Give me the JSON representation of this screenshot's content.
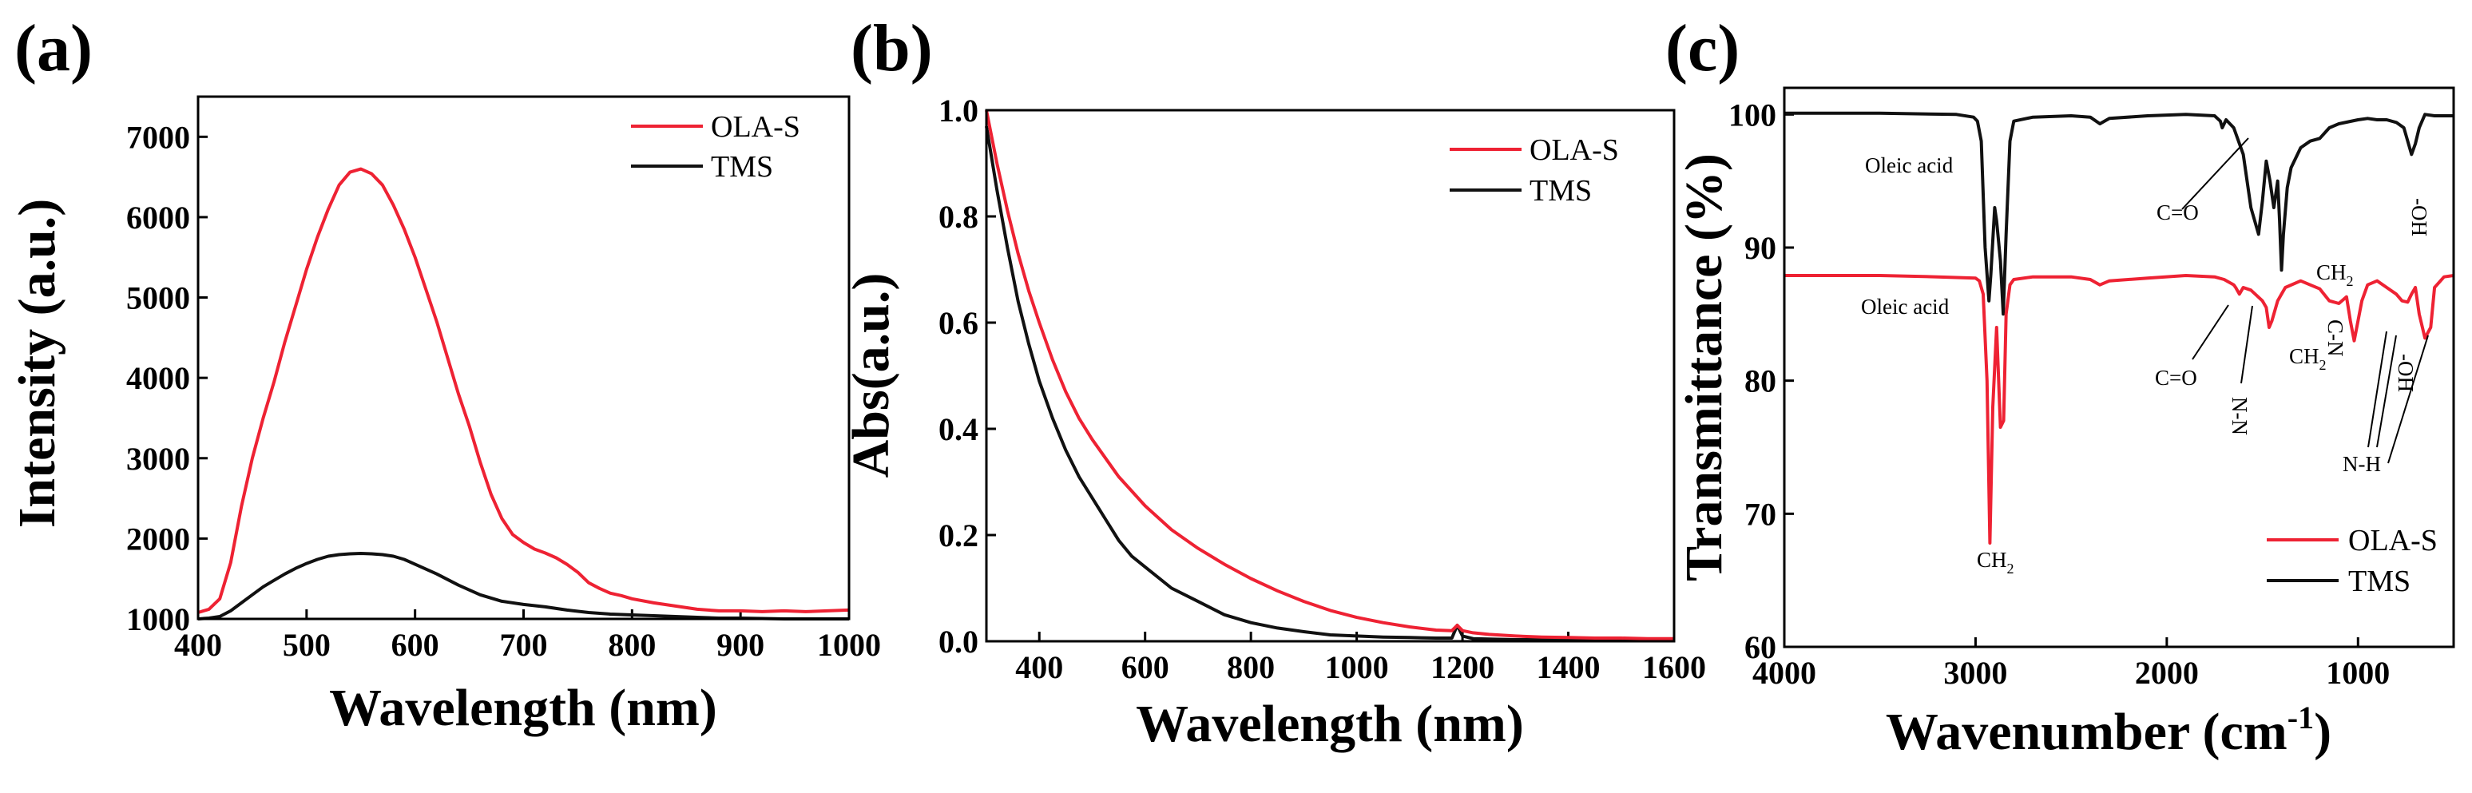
{
  "chart_data": [
    {
      "panel": "(a)",
      "type": "line",
      "title": "",
      "xlabel": "Wavelength (nm)",
      "ylabel": "Intensity (a.u.)",
      "xlim": [
        400,
        1000
      ],
      "ylim": [
        1000,
        7500
      ],
      "xticks": [
        400,
        500,
        600,
        700,
        800,
        900,
        1000
      ],
      "yticks": [
        1000,
        2000,
        3000,
        4000,
        5000,
        6000,
        7000
      ],
      "legend_position": "top-right",
      "series": [
        {
          "name": "OLA-S",
          "color": "#ee2233",
          "x": [
            400,
            410,
            420,
            430,
            440,
            450,
            460,
            470,
            480,
            490,
            500,
            510,
            520,
            530,
            540,
            550,
            560,
            570,
            580,
            590,
            600,
            610,
            620,
            630,
            640,
            650,
            660,
            670,
            680,
            690,
            700,
            710,
            720,
            730,
            740,
            750,
            760,
            770,
            780,
            790,
            800,
            820,
            840,
            860,
            880,
            900,
            920,
            940,
            960,
            980,
            1000
          ],
          "y": [
            1080,
            1120,
            1250,
            1700,
            2400,
            3000,
            3500,
            3950,
            4450,
            4900,
            5350,
            5750,
            6100,
            6400,
            6560,
            6600,
            6540,
            6400,
            6150,
            5850,
            5500,
            5100,
            4700,
            4250,
            3800,
            3400,
            2950,
            2550,
            2250,
            2050,
            1950,
            1870,
            1820,
            1760,
            1680,
            1580,
            1450,
            1380,
            1320,
            1290,
            1250,
            1200,
            1160,
            1120,
            1100,
            1100,
            1090,
            1100,
            1090,
            1100,
            1110
          ]
        },
        {
          "name": "TMS",
          "color": "#111111",
          "x": [
            400,
            410,
            420,
            430,
            440,
            450,
            460,
            470,
            480,
            490,
            500,
            510,
            520,
            530,
            540,
            550,
            560,
            570,
            580,
            590,
            600,
            620,
            640,
            660,
            680,
            700,
            720,
            740,
            760,
            780,
            800,
            820,
            840,
            860,
            880,
            900,
            920,
            940,
            960,
            980,
            1000
          ],
          "y": [
            1000,
            1010,
            1030,
            1100,
            1200,
            1300,
            1400,
            1480,
            1560,
            1630,
            1690,
            1740,
            1780,
            1800,
            1810,
            1815,
            1810,
            1800,
            1780,
            1740,
            1680,
            1560,
            1420,
            1300,
            1220,
            1180,
            1150,
            1110,
            1080,
            1060,
            1050,
            1040,
            1030,
            1020,
            1010,
            1010,
            1005,
            1000,
            1000,
            1000,
            1000
          ]
        }
      ]
    },
    {
      "panel": "(b)",
      "type": "line",
      "title": "",
      "xlabel": "Wavelength (nm)",
      "ylabel": "Abs(a.u.)",
      "xlim": [
        300,
        1600
      ],
      "ylim": [
        0,
        1.0
      ],
      "xticks": [
        400,
        600,
        800,
        1000,
        1200,
        1400,
        1600
      ],
      "yticks": [
        0.0,
        0.2,
        0.4,
        0.6,
        0.8,
        1.0
      ],
      "ytick_labels": [
        "0.0",
        "0.2",
        "0.4",
        "0.6",
        "0.8",
        "1.0"
      ],
      "legend_position": "top-right",
      "series": [
        {
          "name": "OLA-S",
          "color": "#ee2233",
          "x": [
            300,
            320,
            340,
            360,
            380,
            400,
            425,
            450,
            475,
            500,
            550,
            600,
            650,
            700,
            750,
            800,
            850,
            900,
            950,
            1000,
            1050,
            1100,
            1150,
            1180,
            1190,
            1200,
            1220,
            1250,
            1300,
            1350,
            1400,
            1450,
            1500,
            1550,
            1600
          ],
          "y": [
            1.0,
            0.9,
            0.81,
            0.73,
            0.66,
            0.6,
            0.53,
            0.47,
            0.42,
            0.38,
            0.31,
            0.255,
            0.21,
            0.175,
            0.145,
            0.118,
            0.095,
            0.075,
            0.058,
            0.045,
            0.035,
            0.027,
            0.021,
            0.02,
            0.03,
            0.02,
            0.016,
            0.013,
            0.01,
            0.008,
            0.007,
            0.006,
            0.006,
            0.005,
            0.005
          ]
        },
        {
          "name": "TMS",
          "color": "#111111",
          "x": [
            300,
            320,
            340,
            360,
            380,
            400,
            425,
            450,
            475,
            500,
            525,
            550,
            575,
            600,
            650,
            700,
            750,
            800,
            850,
            900,
            950,
            1000,
            1050,
            1100,
            1150,
            1180,
            1190,
            1200,
            1220,
            1250,
            1300,
            1350,
            1400,
            1450,
            1500,
            1550,
            1600
          ],
          "y": [
            0.97,
            0.85,
            0.74,
            0.64,
            0.56,
            0.49,
            0.42,
            0.36,
            0.31,
            0.27,
            0.23,
            0.19,
            0.16,
            0.14,
            0.1,
            0.075,
            0.05,
            0.035,
            0.025,
            0.018,
            0.012,
            0.01,
            0.008,
            0.007,
            0.006,
            0.006,
            0.03,
            0.01,
            0.005,
            0.004,
            0.003,
            0.003,
            0.002,
            0.002,
            0.002,
            0.002,
            0.002
          ]
        }
      ]
    },
    {
      "panel": "(c)",
      "type": "line",
      "title": "",
      "xlabel": "Wavenumber (cm",
      "xlabel_superscript": "-1",
      "xlabel_suffix": ")",
      "ylabel": "Transmittance (%)",
      "xlim": [
        4000,
        500
      ],
      "ylim": [
        60,
        102
      ],
      "xticks": [
        4000,
        3000,
        2000,
        1000
      ],
      "yticks": [
        60,
        70,
        80,
        90,
        100
      ],
      "legend_position": "bottom-right",
      "series": [
        {
          "name": "OLA-S",
          "color": "#ee2233",
          "x": [
            4000,
            3500,
            3200,
            3000,
            2980,
            2960,
            2940,
            2925,
            2910,
            2890,
            2870,
            2853,
            2840,
            2820,
            2800,
            2700,
            2500,
            2400,
            2350,
            2300,
            2100,
            1900,
            1750,
            1700,
            1650,
            1640,
            1620,
            1600,
            1560,
            1500,
            1480,
            1465,
            1450,
            1420,
            1400,
            1380,
            1300,
            1250,
            1200,
            1150,
            1100,
            1060,
            1040,
            1020,
            1000,
            980,
            950,
            900,
            850,
            800,
            770,
            740,
            720,
            700,
            680,
            650,
            620,
            600,
            550,
            500
          ],
          "y": [
            87.9,
            87.9,
            87.8,
            87.7,
            87.5,
            86.5,
            80,
            67.8,
            78,
            84,
            76.5,
            77,
            85,
            87.2,
            87.6,
            87.8,
            87.8,
            87.6,
            87.2,
            87.5,
            87.7,
            87.9,
            87.8,
            87.6,
            87.2,
            87.0,
            86.5,
            87.0,
            86.8,
            86.0,
            85.5,
            84.0,
            84.5,
            86.0,
            86.5,
            87.0,
            87.5,
            87.2,
            86.9,
            86.0,
            85.8,
            86.3,
            84.5,
            83.0,
            84.5,
            86.0,
            87.2,
            87.5,
            87.0,
            86.5,
            86.0,
            85.9,
            86.5,
            87.0,
            85.0,
            83.2,
            84.0,
            87.0,
            87.8,
            87.9
          ]
        },
        {
          "name": "TMS",
          "color": "#111111",
          "x": [
            4000,
            3500,
            3100,
            3010,
            2990,
            2970,
            2950,
            2930,
            2920,
            2900,
            2890,
            2870,
            2855,
            2840,
            2820,
            2800,
            2700,
            2500,
            2400,
            2350,
            2300,
            2100,
            1900,
            1750,
            1720,
            1710,
            1700,
            1690,
            1650,
            1600,
            1560,
            1520,
            1500,
            1480,
            1460,
            1440,
            1420,
            1410,
            1400,
            1390,
            1370,
            1350,
            1300,
            1250,
            1200,
            1150,
            1100,
            1000,
            950,
            900,
            850,
            800,
            760,
            730,
            720,
            700,
            680,
            650,
            600,
            550,
            500
          ],
          "y": [
            100.1,
            100.1,
            100.0,
            99.8,
            99.5,
            98.0,
            90.0,
            86.0,
            88.0,
            93.0,
            92.0,
            89.0,
            85.0,
            91.0,
            98.0,
            99.5,
            99.8,
            99.9,
            99.8,
            99.3,
            99.7,
            99.9,
            100.0,
            99.9,
            99.5,
            99.0,
            99.3,
            99.6,
            99.0,
            97.0,
            93.0,
            91.0,
            93.5,
            96.5,
            95.0,
            93.0,
            95.0,
            92.0,
            88.3,
            91.0,
            94.5,
            96.0,
            97.5,
            98.0,
            98.2,
            99.0,
            99.3,
            99.6,
            99.7,
            99.6,
            99.6,
            99.4,
            99.0,
            97.5,
            97.0,
            97.8,
            99.0,
            100.0,
            99.9,
            99.9,
            99.9
          ]
        }
      ],
      "annotations": {
        "oleic_top": "Oleic acid",
        "co_top": "C=O",
        "ch2_top": "CH",
        "oh_top": "-OH",
        "oleic_bottom": "Oleic acid",
        "co_bottom": "C=O",
        "nn_bottom": "N-N",
        "ch2_bottom": "CH",
        "cn_bottom": "C-N",
        "oh_bottom": "-OH",
        "nh_bottom": "N-H",
        "ch2_main": "CH",
        "subscript_2": "2"
      }
    }
  ]
}
